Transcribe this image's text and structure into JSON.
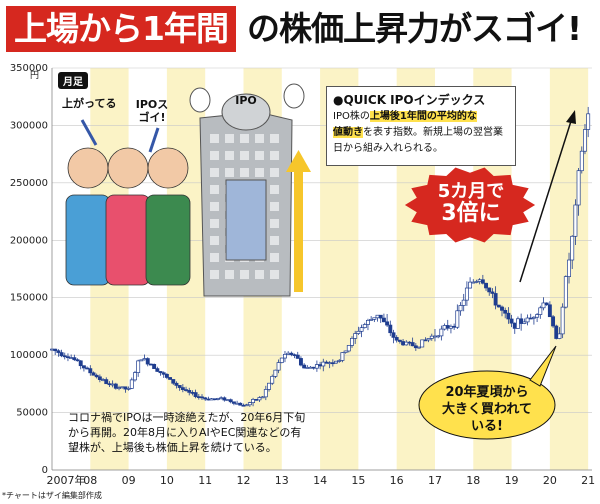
{
  "title": {
    "part1": "上場から1年間",
    "part2": "の株価上昇力がスゴイ!"
  },
  "badge": "月足",
  "unit": "円",
  "index_box": {
    "title": "●QUICK IPOインデックス",
    "line1_pre": "IPO株の",
    "line1_hl": "上場後1年間の平均的な",
    "line2_hl": "値動き",
    "line2_post": "を表す指数。新規上場の翌営業日から組み入れられる。"
  },
  "callout_red": {
    "line1": "5カ月で",
    "line2": "3倍に"
  },
  "callout_yellow": {
    "line1": "20年夏頃から",
    "line2": "大きく買われて",
    "line3": "いる!"
  },
  "speech": {
    "left": "上がってる",
    "right": "IPOスゴイ!"
  },
  "ipo_label": "IPO",
  "note": "コロナ禍でIPOは一時途絶えたが、20年6月下旬から再開。20年8月に入りAIやEC関連などの有望株が、上場後も株価上昇を続けている。",
  "credit": "*チャートはザイ編集部作成",
  "colors": {
    "title_red": "#d6281f",
    "band": "#fbf3c6",
    "candle": "#1f3d8f",
    "callout_red": "#d6281f",
    "callout_yellow": "#ffe14d"
  },
  "chart_data": {
    "type": "candlestick",
    "ylim": [
      0,
      350000
    ],
    "yticks": [
      0,
      50000,
      100000,
      150000,
      200000,
      250000,
      300000,
      350000
    ],
    "ytick_labels": [
      "0",
      "50000",
      "100000",
      "150000",
      "200000",
      "250000",
      "300000",
      "350000"
    ],
    "xlim": [
      2007,
      2021.1
    ],
    "xticks": [
      2007,
      2008,
      2009,
      2010,
      2011,
      2012,
      2013,
      2014,
      2015,
      2016,
      2017,
      2018,
      2019,
      2020,
      2021
    ],
    "xtick_labels": [
      "2007年",
      "08",
      "09",
      "10",
      "11",
      "12",
      "13",
      "14",
      "15",
      "16",
      "17",
      "18",
      "19",
      "20",
      "21"
    ],
    "series": [
      {
        "x": [
          2007.0,
          2007.5,
          2008.0,
          2008.5,
          2009.0,
          2009.3,
          2009.6,
          2010.0,
          2010.5,
          2011.0,
          2011.5,
          2012.0,
          2012.5,
          2013.0,
          2013.3,
          2013.6,
          2014.0,
          2014.5,
          2015.0,
          2015.5,
          2016.0,
          2016.5,
          2017.0,
          2017.5,
          2017.9,
          2018.2,
          2018.5,
          2019.0,
          2019.5,
          2019.9,
          2020.2,
          2020.4,
          2020.6,
          2020.8,
          2021.0
        ],
        "y": [
          105000,
          98000,
          85000,
          74000,
          70000,
          98000,
          92000,
          80000,
          68000,
          62000,
          62000,
          56000,
          64000,
          98000,
          102000,
          88000,
          92000,
          96000,
          122000,
          136000,
          112000,
          108000,
          118000,
          128000,
          162000,
          168000,
          150000,
          126000,
          132000,
          148000,
          108000,
          162000,
          205000,
          272000,
          312000
        ]
      }
    ]
  }
}
